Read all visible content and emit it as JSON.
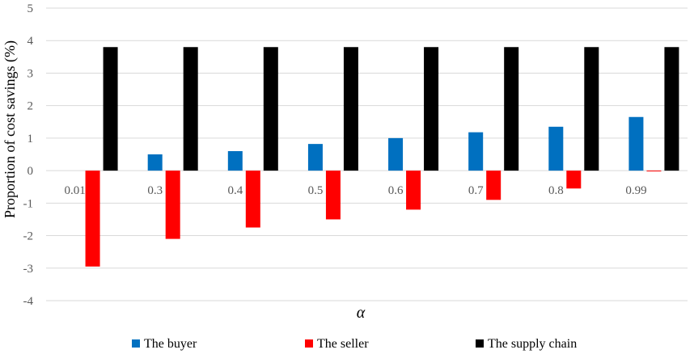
{
  "chart_data": {
    "type": "bar",
    "categories": [
      "0.01",
      "0.3",
      "0.4",
      "0.5",
      "0.6",
      "0.7",
      "0.8",
      "0.99"
    ],
    "series": [
      {
        "name": "The buyer",
        "color": "#0070c0",
        "values": [
          0,
          0.5,
          0.6,
          0.82,
          1.0,
          1.18,
          1.35,
          1.65
        ]
      },
      {
        "name": "The seller",
        "color": "#ff0000",
        "values": [
          -2.95,
          -2.1,
          -1.75,
          -1.5,
          -1.2,
          -0.9,
          -0.55,
          -0.02
        ]
      },
      {
        "name": "The supply chain",
        "color": "#000000",
        "values": [
          3.8,
          3.8,
          3.8,
          3.8,
          3.8,
          3.8,
          3.8,
          3.8
        ]
      }
    ],
    "title": "",
    "xlabel": "α",
    "ylabel": "Proportion of  cost savings (%)",
    "ylim": [
      -4,
      5
    ],
    "yticks": [
      5,
      4,
      3,
      2,
      1,
      0,
      -1,
      -2,
      -3,
      -4
    ],
    "grid": true,
    "legend": "bottom"
  }
}
